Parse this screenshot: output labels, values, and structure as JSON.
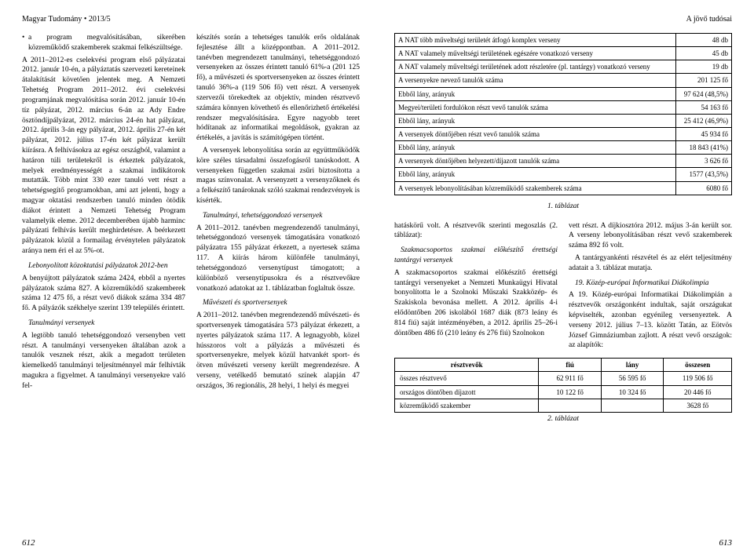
{
  "running_head_left": "Magyar Tudomány • 2013/5",
  "running_head_right": "A jövő tudósai",
  "page_num_left": "612",
  "page_num_right": "613",
  "left": {
    "col1": {
      "bullet": "a program megvalósításában, sikerében közreműködő szakemberek szakmai felkészültsége.",
      "p1": "A 2011–2012-es cselekvési program első pályázatai 2012. január 10-én, a pályáztatás szervezeti kereteinek átalakítását követően jelentek meg. A Nemzeti Tehetség Program 2011–2012. évi cselekvési programjának megvalósítása során 2012. január 10-én tíz pályázat, 2012. március 6-án az Ady Endre ösztöndíjpályázat, 2012. március 24-én hat pályázat, 2012. április 3-án egy pályázat, 2012. április 27-én két pályázat, 2012. július 17-én két pályázat került kiírásra. A felhívásokra az egész országból, valamint a határon túli területekről is érkeztek pályázatok, melyek eredményességét a szakmai indikátorok mutatták. Több mint 330 ezer tanuló vett részt a tehetségsegítő programokban, ami azt jelenti, hogy a magyar oktatási rendszerben tanuló minden ötödik diákot érintett a Nemzeti Tehetség Program valamelyik eleme. 2012 decemberében újabb harminc pályázati felhívás került meghirdetésre. A beérkezett pályázatok közül a formailag érvénytelen pályázatok aránya nem éri el az 5%-ot.",
      "subhead1": "Lebonyolított közoktatási pályázatok 2012-ben",
      "p2": "A benyújtott pályázatok száma 2424, ebből a nyertes pályázatok száma 827. A közreműködő szakemberek száma 12 475 fő, a részt vevő diákok száma 334 487 fő. A pályázók székhelye szerint 139 település érintett.",
      "subhead2": "Tanulmányi versenyek",
      "p3": "A legtöbb tanuló tehetséggondozó versenyben vett részt. A tanulmányi versenyeken általában azok a tanulók vesznek részt, akik a megadott területen kiemelkedő tanulmányi teljesítménnyel már felhívták magukra a figyelmet. A tanulmányi versenyekre való fel-"
    },
    "col2": {
      "p1": "készítés során a tehetséges tanulók erős oldalának fejlesztése állt a középpontban. A 2011–2012. tanévben megrendezett tanulmányi, tehetséggondozó versenyeken az összes érintett tanuló 61%-a (201 125 fő), a művészeti és sportversenyeken az összes érintett tanuló 36%-a (119 506 fő) vett részt. A versenyek szervezői törekedtek az objektív, minden résztvevő számára könnyen követhető és ellenőrizhető értékelési rendszer megvalósítására. Egyre nagyobb teret hódítanak az informatikai megoldások, gyakran az értékelés, a javítás is számítógépen történt.",
      "p2": "A versenyek lebonyolítása során az együttműködők köre széles társadalmi összefogásról tanúskodott. A versenyeken független szakmai zsűri biztosította a magas színvonalat. A versenyzett a versenyzőknek és a felkészítő tanároknak szóló szakmai rendezvények is kísérték.",
      "subhead1": "Tanulmányi, tehetséggondozó versenyek",
      "p3": "A 2011–2012. tanévben megrendezendő tanulmányi, tehetséggondozó versenyek támogatására vonatkozó pályázatra 155 pályázat érkezett, a nyertesek száma 117. A kiírás három különféle tanulmányi, tehetséggondozó versenytípust támogatott; a különböző versenytípusokra és a résztvevőkre vonatkozó adatokat az 1. táblázatban foglaltuk össze.",
      "subhead2": "Művészeti és sportversenyek",
      "p4": "A 2011–2012. tanévben megrendezendő művészeti- és sportversenyek támogatására 573 pályázat érkezett, a nyertes pályázatok száma 117. A legnagyobb, közel hússzoros volt a pályázás a művészeti és sportversenyekre, melyek közül hatvankét sport- és ötven művészeti verseny került megrendezésre. A verseny, vetélkedő bemutató színek alapján 47 országos, 36 regionális, 28 helyi, 1 helyi és megyei"
    }
  },
  "table1": {
    "rows": [
      [
        "A NAT több műveltségi területét átfogó komplex verseny",
        "48 db"
      ],
      [
        "A NAT valamely műveltségi területének egészére vonatkozó verseny",
        "45 db"
      ],
      [
        "A NAT valamely műveltségi területének adott részletére (pl. tantárgy) vonatkozó verseny",
        "19 db"
      ],
      [
        "A versenyekre nevező tanulók száma",
        "201 125 fő"
      ],
      [
        "Ebből lány, arányuk",
        "97 624 (48,5%)"
      ],
      [
        "Megyei/területi fordulókon részt vevő tanulók száma",
        "54 163 fő"
      ],
      [
        "Ebből lány, arányuk",
        "25 412 (46,9%)"
      ],
      [
        "A versenyek döntőjében részt vevő tanulók száma",
        "45 934 fő"
      ],
      [
        "Ebből lány, arányuk",
        "18 843 (41%)"
      ],
      [
        "A versenyek döntőjében helyezett/díjazott tanulók száma",
        "3 626 fő"
      ],
      [
        "Ebből lány, arányuk",
        "1577 (43,5%)"
      ],
      [
        "A versenyek lebonyolításában közreműködő szakemberek száma",
        "6080 fő"
      ]
    ],
    "caption": "1. táblázat"
  },
  "right_lower": {
    "col1": {
      "p1": "hatáskörű volt. A résztvevők szerinti megoszlás (2. táblázat):",
      "subhead1": "Szakmacsoportos szakmai előkészítő érettségi tantárgyi versenyek",
      "p2": "A szakmacsoportos szakmai előkészítő érettségi tantárgyi versenyeket a Nemzeti Munkaügyi Hivatal bonyolította le a Szolnoki Műszaki Szakközép- és Szakiskola bevonása mellett. A 2012. április 4-i elődöntőben 206 iskolából 1687 diák (873 leány és 814 fiú) saját intézményében, a 2012. április 25–26-i döntőben 486 fő (210 leány és 276 fiú) Szolnokon"
    },
    "col2": {
      "p1": "vett részt. A díjkiosztóra 2012. május 3-án került sor. A verseny lebonyolításában részt vevő szakemberek száma 892 fő volt.",
      "p2": "A tantárgyankénti részvétel és az elért teljesítmény adatait a 3. táblázat mutatja.",
      "subhead1": "19. Közép-európai Informatikai Diákolimpia",
      "p3": "A 19. Közép-európai Informatikai Diákolimpián a résztvevők országonként indultak, saját országukat képviselték, azonban egyénileg versenyeztek. A verseny 2012. július 7–13. között Tatán, az Eötvös József Gimnáziumban zajlott. A részt vevő országok: az alapítók:"
    }
  },
  "table2": {
    "headers": [
      "résztvevők",
      "fiú",
      "lány",
      "összesen"
    ],
    "rows": [
      [
        "összes résztvevő",
        "62 911 fő",
        "56 595 fő",
        "119 506 fő"
      ],
      [
        "országos döntőben díjazott",
        "10 122 fő",
        "10 324 fő",
        "20 446 fő"
      ],
      [
        "közreműködő szakember",
        "",
        "",
        "3628 fő"
      ]
    ],
    "caption": "2. táblázat"
  }
}
